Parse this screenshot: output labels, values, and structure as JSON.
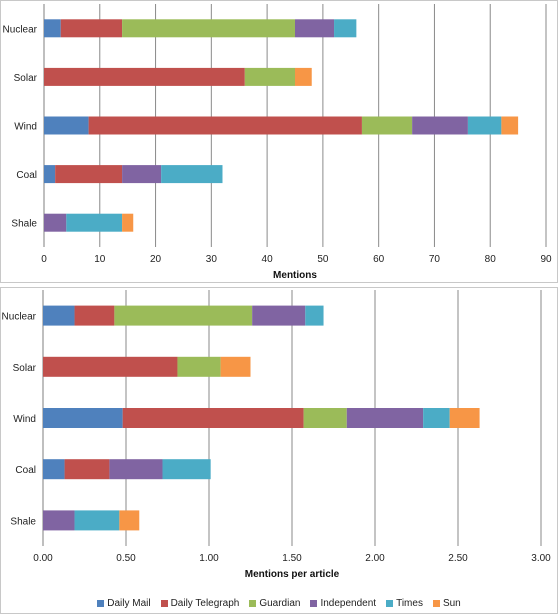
{
  "colors": {
    "Daily Mail": "#4f81bd",
    "Daily Telegraph": "#c0504d",
    "Guardian": "#9bbb59",
    "Independent": "#8064a2",
    "Times": "#4bacc6",
    "Sun": "#f79646"
  },
  "legend": [
    "Daily Mail",
    "Daily Telegraph",
    "Guardian",
    "Independent",
    "Times",
    "Sun"
  ],
  "chart_data": [
    {
      "type": "bar",
      "orientation": "horizontal",
      "stacked": true,
      "xlabel": "Mentions",
      "xlim": [
        0,
        90
      ],
      "xticks": [
        "0",
        "10",
        "20",
        "30",
        "40",
        "50",
        "60",
        "70",
        "80",
        "90"
      ],
      "grid": "vertical",
      "categories": [
        "Nuclear",
        "Solar",
        "Wind",
        "Coal",
        "Shale"
      ],
      "series": [
        {
          "name": "Daily Mail",
          "values": [
            3,
            0,
            8,
            2,
            0
          ]
        },
        {
          "name": "Daily Telegraph",
          "values": [
            11,
            36,
            49,
            12,
            0
          ]
        },
        {
          "name": "Guardian",
          "values": [
            31,
            9,
            9,
            0,
            0
          ]
        },
        {
          "name": "Independent",
          "values": [
            7,
            0,
            10,
            7,
            4
          ]
        },
        {
          "name": "Times",
          "values": [
            4,
            0,
            6,
            11,
            10
          ]
        },
        {
          "name": "Sun",
          "values": [
            0,
            3,
            3,
            0,
            2
          ]
        }
      ]
    },
    {
      "type": "bar",
      "orientation": "horizontal",
      "stacked": true,
      "xlabel": "Mentions per article",
      "xlim": [
        0,
        3
      ],
      "xticks": [
        "0.00",
        "0.50",
        "1.00",
        "1.50",
        "2.00",
        "2.50",
        "3.00"
      ],
      "grid": "vertical",
      "categories": [
        "Nuclear",
        "Solar",
        "Wind",
        "Coal",
        "Shale"
      ],
      "series": [
        {
          "name": "Daily Mail",
          "values": [
            0.19,
            0.0,
            0.48,
            0.13,
            0.0
          ]
        },
        {
          "name": "Daily Telegraph",
          "values": [
            0.24,
            0.81,
            1.09,
            0.27,
            0.0
          ]
        },
        {
          "name": "Guardian",
          "values": [
            0.83,
            0.26,
            0.26,
            0.0,
            0.0
          ]
        },
        {
          "name": "Independent",
          "values": [
            0.32,
            0.0,
            0.46,
            0.32,
            0.19
          ]
        },
        {
          "name": "Times",
          "values": [
            0.11,
            0.0,
            0.16,
            0.29,
            0.27
          ]
        },
        {
          "name": "Sun",
          "values": [
            0.0,
            0.18,
            0.18,
            0.0,
            0.12
          ]
        }
      ]
    }
  ]
}
